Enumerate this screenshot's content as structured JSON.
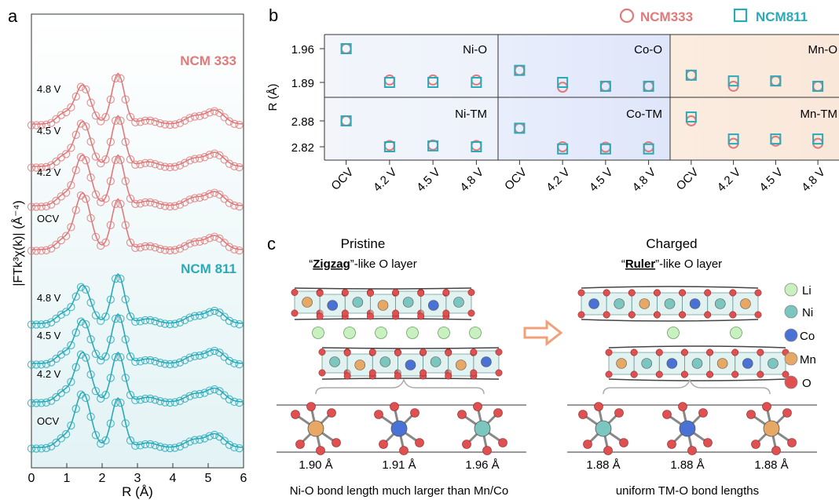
{
  "panel_labels": {
    "a": "a",
    "b": "b",
    "c": "c"
  },
  "colors": {
    "ncm333": "#e07a7a",
    "ncm811": "#2aaab8",
    "ni": "#7cc6c0",
    "co": "#4a72d4",
    "mn": "#e8a865",
    "o": "#e05050",
    "li": "#c8f0c0"
  },
  "panel_a": {
    "ylabel": "|FTk³χ(k)| (Å⁻⁴)",
    "xlabel": "R (Å)",
    "xticks": [
      "0",
      "1",
      "2",
      "3",
      "4",
      "5",
      "6"
    ],
    "group1_label": "NCM 333",
    "group2_label": "NCM 811",
    "curve_labels_333": [
      "4.8 V",
      "4.5 V",
      "4.2 V",
      "OCV"
    ],
    "curve_labels_811": [
      "4.8 V",
      "4.5 V",
      "4.2 V",
      "OCV"
    ]
  },
  "panel_b": {
    "ylabel": "R (Å)",
    "legend": [
      "NCM333",
      "NCM811"
    ],
    "yticks_top": [
      "1.96",
      "1.89"
    ],
    "yticks_bottom": [
      "2.88",
      "2.82"
    ],
    "xticks": [
      "OCV",
      "4.2 V",
      "4.5 V",
      "4.8 V",
      "OCV",
      "4.2 V",
      "4.5 V",
      "4.8 V",
      "OCV",
      "4.2 V",
      "4.5 V",
      "4.8 V"
    ],
    "subplot_titles": [
      "Ni-O",
      "Co-O",
      "Mn-O",
      "Ni-TM",
      "Co-TM",
      "Mn-TM"
    ]
  },
  "chart_data": {
    "type": "scatter",
    "title": "",
    "ylabel": "R (Å)",
    "categories": [
      "OCV",
      "4.2 V",
      "4.5 V",
      "4.8 V"
    ],
    "panels": [
      {
        "name": "Ni-O",
        "ylim": [
          1.86,
          1.98
        ],
        "series": [
          {
            "name": "NCM333",
            "values": [
              1.96,
              1.895,
              1.895,
              1.895
            ]
          },
          {
            "name": "NCM811",
            "values": [
              1.96,
              1.89,
              1.89,
              1.89
            ]
          }
        ]
      },
      {
        "name": "Co-O",
        "ylim": [
          1.86,
          1.98
        ],
        "series": [
          {
            "name": "NCM333",
            "values": [
              1.915,
              1.88,
              1.882,
              1.882
            ]
          },
          {
            "name": "NCM811",
            "values": [
              1.915,
              1.89,
              1.882,
              1.882
            ]
          }
        ]
      },
      {
        "name": "Mn-O",
        "ylim": [
          1.86,
          1.98
        ],
        "series": [
          {
            "name": "NCM333",
            "values": [
              1.905,
              1.882,
              1.893,
              1.882
            ]
          },
          {
            "name": "NCM811",
            "values": [
              1.905,
              1.893,
              1.893,
              1.882
            ]
          }
        ]
      },
      {
        "name": "Ni-TM",
        "ylim": [
          2.805,
          2.905
        ],
        "series": [
          {
            "name": "NCM333",
            "values": [
              2.88,
              2.823,
              2.824,
              2.823
            ]
          },
          {
            "name": "NCM811",
            "values": [
              2.88,
              2.82,
              2.822,
              2.82
            ]
          }
        ]
      },
      {
        "name": "Co-TM",
        "ylim": [
          2.805,
          2.905
        ],
        "series": [
          {
            "name": "NCM333",
            "values": [
              2.863,
              2.82,
              2.819,
              2.82
            ]
          },
          {
            "name": "NCM811",
            "values": [
              2.863,
              2.815,
              2.815,
              2.815
            ]
          }
        ]
      },
      {
        "name": "Mn-TM",
        "ylim": [
          2.805,
          2.905
        ],
        "series": [
          {
            "name": "NCM333",
            "values": [
              2.88,
              2.828,
              2.833,
              2.828
            ]
          },
          {
            "name": "NCM811",
            "values": [
              2.889,
              2.838,
              2.838,
              2.838
            ]
          }
        ]
      }
    ]
  },
  "panel_c": {
    "left_title": "Pristine",
    "left_subtitle_q1": "“",
    "left_subtitle_bold": "Zigzag",
    "left_subtitle_rest": "”-like O layer",
    "right_title": "Charged",
    "right_subtitle_q1": "“",
    "right_subtitle_bold": "Ruler",
    "right_subtitle_rest": "”-like O layer",
    "left_bonds": [
      "1.90 Å",
      "1.91 Å",
      "1.96 Å"
    ],
    "right_bonds": [
      "1.88 Å",
      "1.88 Å",
      "1.88 Å"
    ],
    "left_caption": "Ni-O bond length much larger than Mn/Co",
    "right_caption": "uniform TM-O bond lengths",
    "legend": [
      "Li",
      "Ni",
      "Co",
      "Mn",
      "O"
    ]
  }
}
